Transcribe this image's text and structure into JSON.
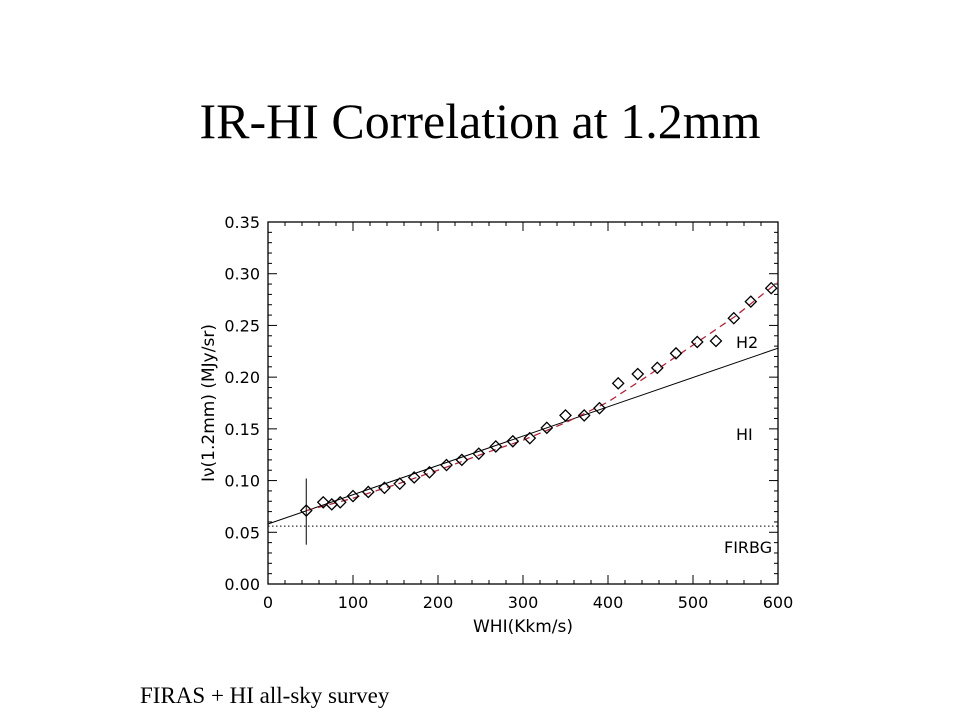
{
  "slide": {
    "title": "IR-HI Correlation at 1.2mm",
    "caption": "FIRAS + HI all-sky survey"
  },
  "chart_data": {
    "type": "scatter",
    "xlabel": "WHI(Kkm/s)",
    "ylabel": "Iν(1.2mm) (MJy/sr)",
    "xlim": [
      0,
      600
    ],
    "ylim": [
      0,
      0.35
    ],
    "x_ticks": [
      "0",
      "100",
      "200",
      "300",
      "400",
      "500",
      "600"
    ],
    "y_ticks": [
      "0.00",
      "0.05",
      "0.10",
      "0.15",
      "0.20",
      "0.25",
      "0.30",
      "0.35"
    ],
    "points": [
      {
        "x": 45,
        "y": 0.071
      },
      {
        "x": 65,
        "y": 0.079
      },
      {
        "x": 75,
        "y": 0.077
      },
      {
        "x": 85,
        "y": 0.079
      },
      {
        "x": 100,
        "y": 0.085
      },
      {
        "x": 118,
        "y": 0.089
      },
      {
        "x": 137,
        "y": 0.093
      },
      {
        "x": 155,
        "y": 0.097
      },
      {
        "x": 172,
        "y": 0.103
      },
      {
        "x": 190,
        "y": 0.108
      },
      {
        "x": 210,
        "y": 0.115
      },
      {
        "x": 228,
        "y": 0.12
      },
      {
        "x": 248,
        "y": 0.126
      },
      {
        "x": 268,
        "y": 0.133
      },
      {
        "x": 288,
        "y": 0.138
      },
      {
        "x": 308,
        "y": 0.141
      },
      {
        "x": 328,
        "y": 0.151
      },
      {
        "x": 350,
        "y": 0.163
      },
      {
        "x": 372,
        "y": 0.163
      },
      {
        "x": 390,
        "y": 0.17
      },
      {
        "x": 412,
        "y": 0.194
      },
      {
        "x": 435,
        "y": 0.203
      },
      {
        "x": 458,
        "y": 0.209
      },
      {
        "x": 480,
        "y": 0.223
      },
      {
        "x": 505,
        "y": 0.234
      },
      {
        "x": 527,
        "y": 0.235
      },
      {
        "x": 548,
        "y": 0.257
      },
      {
        "x": 568,
        "y": 0.273
      },
      {
        "x": 592,
        "y": 0.286
      }
    ],
    "error_bar": {
      "x": 45,
      "y_low": 0.038,
      "y_high": 0.102
    },
    "hi_line": {
      "x": [
        0,
        600
      ],
      "y": [
        0.058,
        0.228
      ]
    },
    "h2_curve": {
      "x": [
        45,
        100,
        150,
        200,
        250,
        300,
        350,
        400,
        450,
        500,
        550,
        600
      ],
      "y": [
        0.071,
        0.083,
        0.096,
        0.11,
        0.125,
        0.139,
        0.156,
        0.176,
        0.203,
        0.231,
        0.259,
        0.292
      ]
    },
    "firbg_level": 0.056,
    "annotations": {
      "h2": "H2",
      "hi": "HI",
      "firbg": "FIRBG"
    },
    "colors": {
      "h2_curve": "#b0243a",
      "markers": "#000000",
      "lines": "#000000"
    },
    "grid": false
  }
}
